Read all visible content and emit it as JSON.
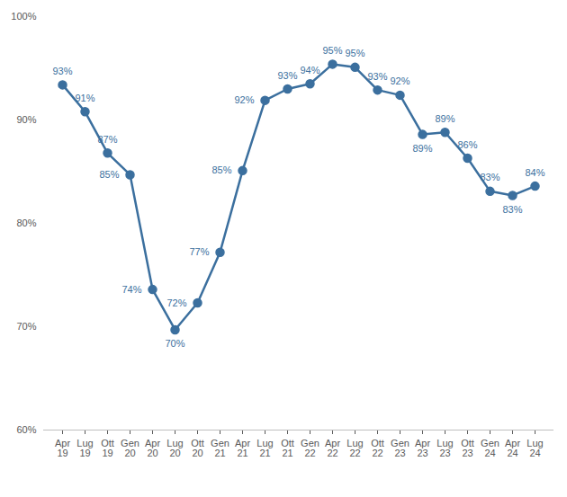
{
  "chart_data": {
    "type": "line",
    "categories": [
      "Apr\n19",
      "Lug\n19",
      "Ott\n19",
      "Gen\n20",
      "Apr\n20",
      "Lug\n20",
      "Ott\n20",
      "Gen\n21",
      "Apr\n21",
      "Lug\n21",
      "Ott\n21",
      "Gen\n22",
      "Apr\n22",
      "Lug\n22",
      "Ott\n22",
      "Gen\n23",
      "Apr\n23",
      "Lug\n23",
      "Ott\n23",
      "Gen\n24",
      "Apr\n24",
      "Lug\n24"
    ],
    "values": [
      93.4,
      90.8,
      86.8,
      84.7,
      73.6,
      69.7,
      72.3,
      77.2,
      85.1,
      91.9,
      93.0,
      93.5,
      95.4,
      95.1,
      92.9,
      92.4,
      88.6,
      88.8,
      86.3,
      83.1,
      82.7,
      83.6
    ],
    "value_labels": [
      "93%",
      "91%",
      "87%",
      "85%",
      "74%",
      "70%",
      "72%",
      "77%",
      "85%",
      "92%",
      "93%",
      "94%",
      "95%",
      "95%",
      "93%",
      "92%",
      "89%",
      "89%",
      "86%",
      "83%",
      "83%",
      "84%"
    ],
    "color": "#3b6f9e",
    "marker": "circle",
    "data_labels": true,
    "grid": false,
    "ylim": [
      60,
      100
    ],
    "yticks": [
      {
        "value": 60,
        "label": "60%"
      },
      {
        "value": 70,
        "label": "70%"
      },
      {
        "value": 80,
        "label": "80%"
      },
      {
        "value": 90,
        "label": "90%"
      },
      {
        "value": 100,
        "label": "100%"
      }
    ]
  }
}
